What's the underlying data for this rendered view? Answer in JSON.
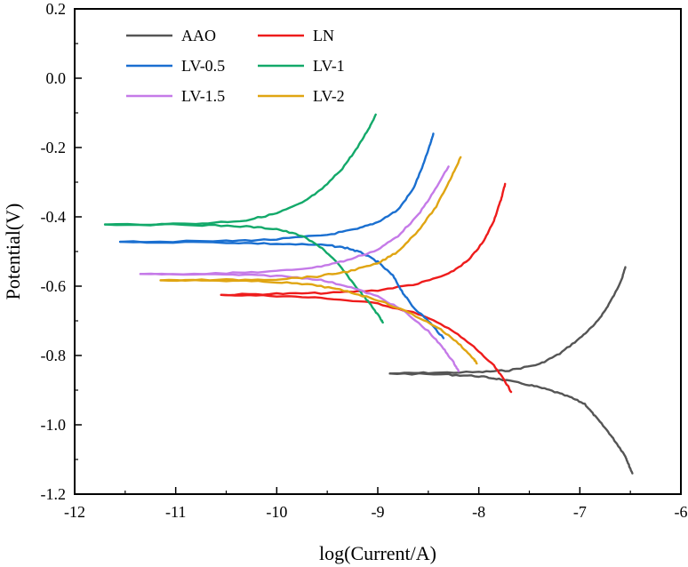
{
  "chart_data": {
    "type": "line",
    "title": "",
    "xlabel": "log(Current/A)",
    "ylabel": "Potential(V)",
    "xlim": [
      -12,
      -6
    ],
    "ylim": [
      -1.2,
      0.2
    ],
    "xticks": [
      -12,
      -11,
      -10,
      -9,
      -8,
      -7,
      -6
    ],
    "xtick_labels": [
      "-12",
      "-11",
      "-10",
      "-9",
      "-8",
      "-7",
      "-6"
    ],
    "yticks": [
      -1.2,
      -1.0,
      -0.8,
      -0.6,
      -0.4,
      -0.2,
      0.0,
      0.2
    ],
    "ytick_labels": [
      "-1.2",
      "-1.0",
      "-0.8",
      "-0.6",
      "-0.4",
      "-0.2",
      "0.0",
      "0.2"
    ],
    "grid": false,
    "legend_position": "top-left",
    "series": [
      {
        "name": "AAO",
        "color": "#555555",
        "anodic": [
          [
            -8.88,
            -0.852
          ],
          [
            -8.5,
            -0.85
          ],
          [
            -8.0,
            -0.848
          ],
          [
            -7.7,
            -0.843
          ],
          [
            -7.4,
            -0.825
          ],
          [
            -7.2,
            -0.795
          ],
          [
            -7.0,
            -0.75
          ],
          [
            -6.85,
            -0.71
          ],
          [
            -6.75,
            -0.67
          ],
          [
            -6.65,
            -0.62
          ],
          [
            -6.58,
            -0.575
          ],
          [
            -6.55,
            -0.545
          ]
        ],
        "cathodic": [
          [
            -8.88,
            -0.852
          ],
          [
            -8.3,
            -0.855
          ],
          [
            -8.0,
            -0.86
          ],
          [
            -7.8,
            -0.868
          ],
          [
            -7.5,
            -0.885
          ],
          [
            -7.3,
            -0.9
          ],
          [
            -7.1,
            -0.92
          ],
          [
            -6.95,
            -0.94
          ],
          [
            -6.85,
            -0.975
          ],
          [
            -6.72,
            -1.02
          ],
          [
            -6.62,
            -1.06
          ],
          [
            -6.55,
            -1.09
          ],
          [
            -6.51,
            -1.12
          ],
          [
            -6.48,
            -1.14
          ]
        ]
      },
      {
        "name": "LN",
        "color": "#ee1c1c",
        "anodic": [
          [
            -10.55,
            -0.625
          ],
          [
            -10.0,
            -0.622
          ],
          [
            -9.5,
            -0.62
          ],
          [
            -9.0,
            -0.612
          ],
          [
            -8.6,
            -0.593
          ],
          [
            -8.3,
            -0.565
          ],
          [
            -8.1,
            -0.525
          ],
          [
            -7.95,
            -0.47
          ],
          [
            -7.85,
            -0.41
          ],
          [
            -7.78,
            -0.35
          ],
          [
            -7.74,
            -0.305
          ]
        ],
        "cathodic": [
          [
            -10.55,
            -0.625
          ],
          [
            -10.0,
            -0.628
          ],
          [
            -9.5,
            -0.635
          ],
          [
            -9.0,
            -0.65
          ],
          [
            -8.6,
            -0.68
          ],
          [
            -8.3,
            -0.72
          ],
          [
            -8.05,
            -0.775
          ],
          [
            -7.85,
            -0.83
          ],
          [
            -7.75,
            -0.87
          ],
          [
            -7.68,
            -0.905
          ]
        ]
      },
      {
        "name": "LV-0.5",
        "color": "#1a6fd0",
        "anodic": [
          [
            -11.55,
            -0.472
          ],
          [
            -10.5,
            -0.47
          ],
          [
            -10.0,
            -0.465
          ],
          [
            -9.5,
            -0.452
          ],
          [
            -9.2,
            -0.435
          ],
          [
            -9.0,
            -0.415
          ],
          [
            -8.8,
            -0.38
          ],
          [
            -8.65,
            -0.32
          ],
          [
            -8.55,
            -0.25
          ],
          [
            -8.48,
            -0.19
          ],
          [
            -8.45,
            -0.16
          ]
        ],
        "cathodic": [
          [
            -11.55,
            -0.472
          ],
          [
            -10.5,
            -0.474
          ],
          [
            -10.0,
            -0.478
          ],
          [
            -9.5,
            -0.482
          ],
          [
            -9.3,
            -0.49
          ],
          [
            -9.15,
            -0.505
          ],
          [
            -9.0,
            -0.53
          ],
          [
            -8.85,
            -0.57
          ],
          [
            -8.75,
            -0.62
          ],
          [
            -8.65,
            -0.66
          ],
          [
            -8.5,
            -0.7
          ],
          [
            -8.35,
            -0.75
          ]
        ]
      },
      {
        "name": "LV-1",
        "color": "#13a96a",
        "anodic": [
          [
            -11.7,
            -0.422
          ],
          [
            -10.8,
            -0.42
          ],
          [
            -10.3,
            -0.41
          ],
          [
            -10.0,
            -0.39
          ],
          [
            -9.75,
            -0.36
          ],
          [
            -9.55,
            -0.32
          ],
          [
            -9.35,
            -0.26
          ],
          [
            -9.2,
            -0.2
          ],
          [
            -9.08,
            -0.14
          ],
          [
            -9.02,
            -0.105
          ]
        ],
        "cathodic": [
          [
            -11.7,
            -0.422
          ],
          [
            -10.8,
            -0.423
          ],
          [
            -10.3,
            -0.428
          ],
          [
            -10.0,
            -0.435
          ],
          [
            -9.75,
            -0.455
          ],
          [
            -9.55,
            -0.49
          ],
          [
            -9.38,
            -0.54
          ],
          [
            -9.22,
            -0.6
          ],
          [
            -9.08,
            -0.65
          ],
          [
            -8.98,
            -0.69
          ],
          [
            -8.95,
            -0.705
          ]
        ]
      },
      {
        "name": "LV-1.5",
        "color": "#c57ae8",
        "anodic": [
          [
            -11.35,
            -0.565
          ],
          [
            -10.5,
            -0.563
          ],
          [
            -10.0,
            -0.557
          ],
          [
            -9.6,
            -0.545
          ],
          [
            -9.3,
            -0.525
          ],
          [
            -9.0,
            -0.495
          ],
          [
            -8.8,
            -0.455
          ],
          [
            -8.6,
            -0.395
          ],
          [
            -8.45,
            -0.33
          ],
          [
            -8.3,
            -0.255
          ]
        ],
        "cathodic": [
          [
            -11.35,
            -0.565
          ],
          [
            -10.5,
            -0.567
          ],
          [
            -10.0,
            -0.57
          ],
          [
            -9.6,
            -0.58
          ],
          [
            -9.3,
            -0.6
          ],
          [
            -9.0,
            -0.63
          ],
          [
            -8.75,
            -0.67
          ],
          [
            -8.5,
            -0.73
          ],
          [
            -8.35,
            -0.78
          ],
          [
            -8.25,
            -0.82
          ],
          [
            -8.2,
            -0.845
          ]
        ]
      },
      {
        "name": "LV-2",
        "color": "#e0a512",
        "anodic": [
          [
            -11.15,
            -0.583
          ],
          [
            -10.5,
            -0.582
          ],
          [
            -10.0,
            -0.58
          ],
          [
            -9.6,
            -0.572
          ],
          [
            -9.3,
            -0.558
          ],
          [
            -9.0,
            -0.535
          ],
          [
            -8.8,
            -0.5
          ],
          [
            -8.6,
            -0.44
          ],
          [
            -8.42,
            -0.37
          ],
          [
            -8.28,
            -0.29
          ],
          [
            -8.18,
            -0.228
          ]
        ],
        "cathodic": [
          [
            -11.15,
            -0.583
          ],
          [
            -10.5,
            -0.584
          ],
          [
            -10.0,
            -0.588
          ],
          [
            -9.6,
            -0.598
          ],
          [
            -9.3,
            -0.615
          ],
          [
            -9.0,
            -0.64
          ],
          [
            -8.7,
            -0.675
          ],
          [
            -8.4,
            -0.72
          ],
          [
            -8.2,
            -0.765
          ],
          [
            -8.05,
            -0.81
          ],
          [
            -8.02,
            -0.823
          ]
        ]
      }
    ]
  }
}
